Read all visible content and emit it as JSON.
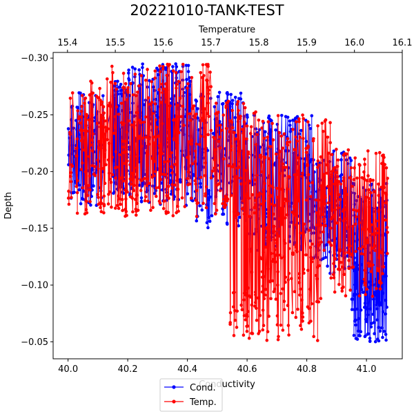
{
  "chart_data": {
    "type": "line",
    "title": "20221010-TANK-TEST",
    "xlabel": "Conductivity",
    "x2label": "Temperature",
    "ylabel": "Depth",
    "xlim": [
      39.95,
      41.12
    ],
    "x2lim": [
      15.37,
      16.1
    ],
    "ylim": [
      -0.305,
      -0.035
    ],
    "y_inverted": true,
    "xticks": [
      "40.0",
      "40.2",
      "40.4",
      "40.6",
      "40.8",
      "41.0"
    ],
    "x2ticks": [
      "15.4",
      "15.5",
      "15.6",
      "15.7",
      "15.8",
      "15.9",
      "16.0",
      "16.1"
    ],
    "yticks": [
      "−0.30",
      "−0.25",
      "−0.20",
      "−0.15",
      "−0.10",
      "−0.05"
    ],
    "grid": false,
    "legend": "bottom-center, below plot",
    "series": [
      {
        "name": "Cond.",
        "color": "#0000ff",
        "x_axis": "Conductivity",
        "marker": "circle",
        "segments": [
          {
            "x_range": [
              40.0,
              40.12
            ],
            "depth_range": [
              -0.27,
              -0.17
            ],
            "count": 110
          },
          {
            "x_range": [
              40.15,
              40.2
            ],
            "depth_range": [
              -0.28,
              -0.18
            ],
            "count": 120
          },
          {
            "x_range": [
              40.2,
              40.42
            ],
            "depth_range": [
              -0.295,
              -0.17
            ],
            "count": 300
          },
          {
            "x_range": [
              40.42,
              40.6
            ],
            "depth_range": [
              -0.27,
              -0.15
            ],
            "count": 170
          },
          {
            "x_range": [
              40.6,
              40.82
            ],
            "depth_range": [
              -0.25,
              -0.13
            ],
            "count": 190
          },
          {
            "x_range": [
              40.82,
              40.95
            ],
            "depth_range": [
              -0.22,
              -0.11
            ],
            "count": 140
          },
          {
            "x_range": [
              40.95,
              41.07
            ],
            "depth_range": [
              -0.19,
              -0.05
            ],
            "count": 170
          }
        ]
      },
      {
        "name": "Temp.",
        "color": "#ff0000",
        "x_axis": "Temperature",
        "marker": "circle",
        "segments": [
          {
            "x_range": [
              15.4,
              15.48
            ],
            "depth_range": [
              -0.28,
              -0.16
            ],
            "count": 110
          },
          {
            "x_range": [
              15.48,
              15.7
            ],
            "depth_range": [
              -0.295,
              -0.16
            ],
            "count": 300
          },
          {
            "x_range": [
              15.7,
              15.8
            ],
            "depth_range": [
              -0.265,
              -0.16
            ],
            "count": 110
          },
          {
            "x_range": [
              15.8,
              15.95
            ],
            "depth_range": [
              -0.25,
              -0.13
            ],
            "count": 170
          },
          {
            "x_range": [
              15.95,
              16.07
            ],
            "depth_range": [
              -0.22,
              -0.09
            ],
            "count": 190
          },
          {
            "x_range": [
              15.74,
              15.78
            ],
            "depth_range": [
              -0.1,
              -0.05
            ],
            "count": 30
          },
          {
            "x_range": [
              15.78,
              15.93
            ],
            "depth_range": [
              -0.13,
              -0.05
            ],
            "count": 110
          }
        ]
      }
    ]
  }
}
